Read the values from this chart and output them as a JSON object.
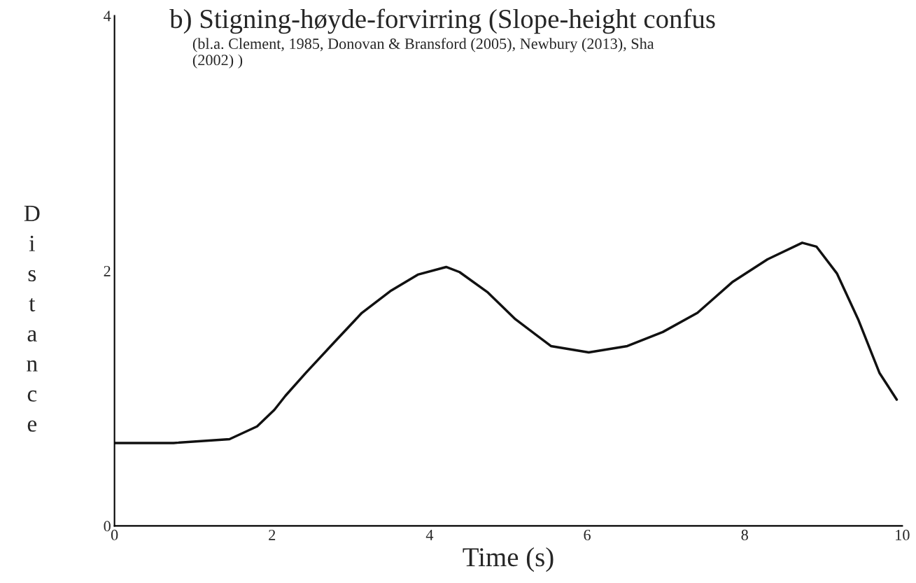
{
  "chart_data": {
    "type": "line",
    "title": "b) Stigning-høyde-forvirring (Slope-height confus",
    "subtitle": "(bl.a. Clement, 1985, Donovan & Bransford (2005), Newbury (2013), Sha\n(2002) )",
    "xlabel": "Time (s)",
    "ylabel": "Distance",
    "x": [
      0,
      0.75,
      1.46,
      1.81,
      2.03,
      2.17,
      2.43,
      2.79,
      3.14,
      3.5,
      3.85,
      4.21,
      4.38,
      4.74,
      5.09,
      5.54,
      6.02,
      6.51,
      6.96,
      7.4,
      7.84,
      8.29,
      8.73,
      8.91,
      9.17,
      9.44,
      9.71,
      9.93
    ],
    "series": [
      {
        "color": "#111111",
        "values": [
          0.65,
          0.65,
          0.68,
          0.78,
          0.91,
          1.02,
          1.2,
          1.44,
          1.67,
          1.84,
          1.97,
          2.03,
          1.99,
          1.83,
          1.62,
          1.41,
          1.36,
          1.41,
          1.52,
          1.67,
          1.91,
          2.09,
          2.22,
          2.19,
          1.98,
          1.62,
          1.2,
          0.99
        ]
      }
    ],
    "xlim": [
      0,
      10
    ],
    "ylim": [
      0,
      4
    ],
    "xticks": [
      0,
      2,
      4,
      6,
      8,
      10
    ],
    "yticks": [
      0,
      2,
      4
    ],
    "grid": false
  }
}
